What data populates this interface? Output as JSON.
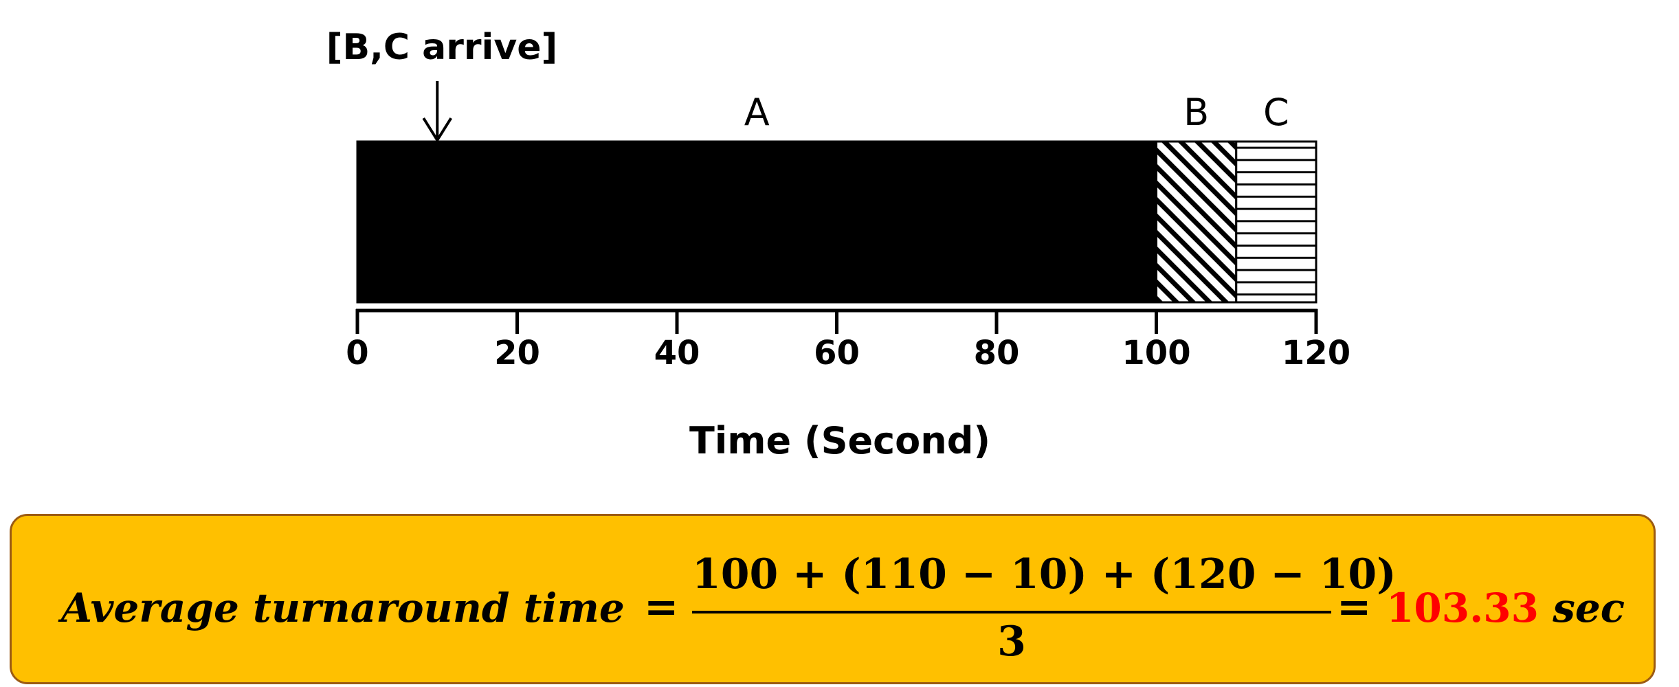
{
  "arrival_label": "[B,C arrive]",
  "arrival_time": 10,
  "jobs": [
    {
      "name": "A",
      "start": 0,
      "end": 100,
      "fill": "solid-black"
    },
    {
      "name": "B",
      "start": 100,
      "end": 110,
      "fill": "diagonal-hatch"
    },
    {
      "name": "C",
      "start": 110,
      "end": 120,
      "fill": "horizontal-hatch"
    }
  ],
  "axis": {
    "min": 0,
    "max": 120,
    "ticks": [
      "0",
      "20",
      "40",
      "60",
      "80",
      "100",
      "120"
    ],
    "label": "Time (Second)"
  },
  "formula": {
    "lhs": "Average turnaround time",
    "equals": "=",
    "numerator": "100 + (110 − 10) + (120 − 10)",
    "denominator": "3",
    "result_value": "103.33",
    "result_unit": "sec"
  },
  "colors": {
    "box_fill": "#FFC000",
    "box_border": "#9C5B12",
    "result": "#FF0000"
  }
}
